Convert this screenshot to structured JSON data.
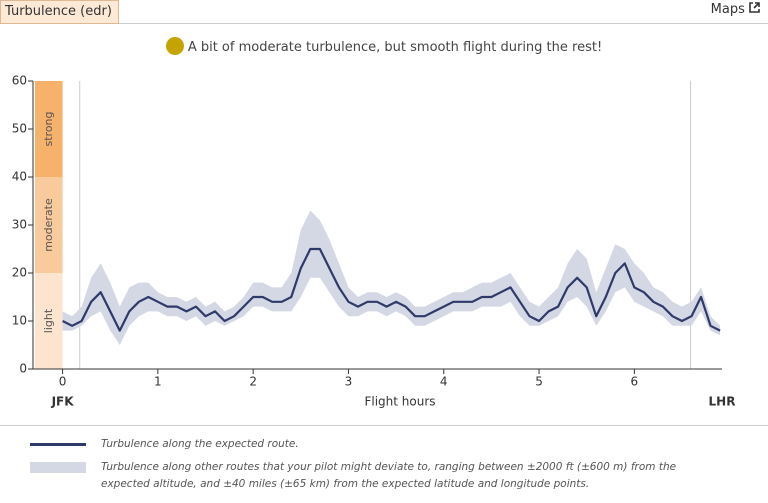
{
  "header": {
    "title": "Turbulence (edr)",
    "link": "Maps"
  },
  "subtitle": "A bit of moderate turbulence, but smooth flight during the rest!",
  "chart_data": {
    "type": "line",
    "xlabel": "Flight hours",
    "origin": "JFK",
    "destination": "LHR",
    "x": [
      0,
      0.1,
      0.2,
      0.3,
      0.4,
      0.5,
      0.6,
      0.7,
      0.8,
      0.9,
      1,
      1.1,
      1.2,
      1.3,
      1.4,
      1.5,
      1.6,
      1.7,
      1.8,
      1.9,
      2,
      2.1,
      2.2,
      2.3,
      2.4,
      2.5,
      2.6,
      2.7,
      2.8,
      2.9,
      3,
      3.1,
      3.2,
      3.3,
      3.4,
      3.5,
      3.6,
      3.7,
      3.8,
      3.9,
      4,
      4.1,
      4.2,
      4.3,
      4.4,
      4.5,
      4.6,
      4.7,
      4.8,
      4.9,
      5,
      5.1,
      5.2,
      5.3,
      5.4,
      5.5,
      5.6,
      5.7,
      5.8,
      5.9,
      6,
      6.1,
      6.2,
      6.3,
      6.4,
      6.5,
      6.6,
      6.7,
      6.8,
      6.9
    ],
    "series": [
      {
        "name": "Turbulence along the expected route.",
        "color": "#2e3a6a",
        "values": [
          10,
          9,
          10,
          14,
          16,
          12,
          8,
          12,
          14,
          15,
          14,
          13,
          13,
          12,
          13,
          11,
          12,
          10,
          11,
          13,
          15,
          15,
          14,
          14,
          15,
          21,
          25,
          25,
          21,
          17,
          14,
          13,
          14,
          14,
          13,
          14,
          13,
          11,
          11,
          12,
          13,
          14,
          14,
          14,
          15,
          15,
          16,
          17,
          14,
          11,
          10,
          12,
          13,
          17,
          19,
          17,
          11,
          15,
          20,
          22,
          17,
          16,
          14,
          13,
          11,
          10,
          11,
          15,
          9,
          8
        ]
      }
    ],
    "band": {
      "name": "Turbulence along other routes that your pilot might deviate to, ranging between ±2000 ft (±600 m) from the expected altitude, and ±40 miles (±65 km) from the expected latitude and longitude points.",
      "color": "#d4d7e4",
      "lower": [
        8,
        8,
        9,
        11,
        12,
        8,
        5,
        9,
        11,
        12,
        12,
        11,
        11,
        10,
        11,
        9,
        10,
        9,
        10,
        11,
        13,
        13,
        12,
        12,
        12,
        15,
        19,
        19,
        16,
        13,
        11,
        11,
        12,
        12,
        11,
        12,
        11,
        9,
        9,
        10,
        11,
        12,
        12,
        12,
        13,
        13,
        13,
        14,
        11,
        9,
        9,
        10,
        11,
        14,
        15,
        13,
        9,
        12,
        16,
        17,
        14,
        13,
        12,
        11,
        9,
        9,
        9,
        12,
        8,
        7
      ],
      "upper": [
        12,
        11,
        13,
        19,
        22,
        18,
        13,
        17,
        18,
        18,
        16,
        15,
        15,
        14,
        15,
        13,
        14,
        12,
        13,
        15,
        18,
        18,
        17,
        17,
        20,
        29,
        33,
        31,
        27,
        22,
        17,
        15,
        16,
        16,
        15,
        16,
        15,
        13,
        13,
        14,
        15,
        16,
        16,
        17,
        18,
        18,
        19,
        20,
        17,
        14,
        13,
        15,
        17,
        22,
        25,
        23,
        16,
        21,
        26,
        25,
        22,
        20,
        17,
        16,
        14,
        13,
        14,
        17,
        11,
        9
      ]
    },
    "zones": [
      {
        "label": "light",
        "from": 0,
        "to": 20,
        "color": "#fce4cf"
      },
      {
        "label": "moderate",
        "from": 20,
        "to": 40,
        "color": "#f9cb9c"
      },
      {
        "label": "strong",
        "from": 40,
        "to": 60,
        "color": "#f6b26b"
      }
    ],
    "markers": [
      0.18,
      6.59
    ],
    "xlim": [
      -0.3,
      6.92
    ],
    "ylim": [
      0,
      60
    ],
    "xticks": [
      0,
      1,
      2,
      3,
      4,
      5,
      6
    ],
    "yticks": [
      0,
      10,
      20,
      30,
      40,
      50,
      60
    ]
  }
}
